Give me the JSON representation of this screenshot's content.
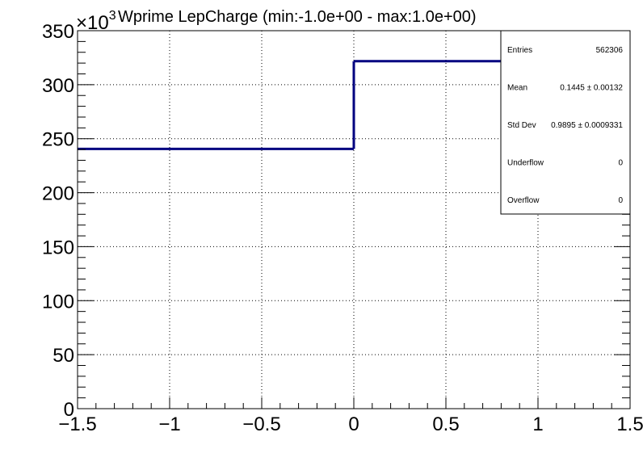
{
  "chart_data": {
    "type": "histogram",
    "title": "Wprime LepCharge (min:-1.0e+00 - max:1.0e+00)",
    "y_multiplier_label": "×10",
    "y_multiplier_exponent": "3",
    "xlim": [
      -1.5,
      1.5
    ],
    "ylim": [
      0,
      350
    ],
    "y_unit_scale": 1000,
    "x_ticks": [
      -1.5,
      -1,
      -0.5,
      0,
      0.5,
      1,
      1.5
    ],
    "x_tick_labels": [
      "−1.5",
      "−1",
      "−0.5",
      "0",
      "0.5",
      "1",
      "1.5"
    ],
    "y_ticks": [
      0,
      50,
      100,
      150,
      200,
      250,
      300,
      350
    ],
    "y_tick_labels": [
      "0",
      "50",
      "100",
      "150",
      "200",
      "250",
      "300",
      "350"
    ],
    "grid": true,
    "line_color": "#000080",
    "bins": [
      {
        "x_low": -1.5,
        "x_high": 0,
        "value": 240.5
      },
      {
        "x_low": 0,
        "x_high": 1.5,
        "value": 321.8
      }
    ],
    "stats": [
      {
        "label": "Entries",
        "value": "562306"
      },
      {
        "label": "Mean",
        "value": "0.1445 ± 0.00132"
      },
      {
        "label": "Std Dev",
        "value": "0.9895 ± 0.0009331"
      },
      {
        "label": "Underflow",
        "value": "0"
      },
      {
        "label": "Overflow",
        "value": "0"
      }
    ]
  }
}
